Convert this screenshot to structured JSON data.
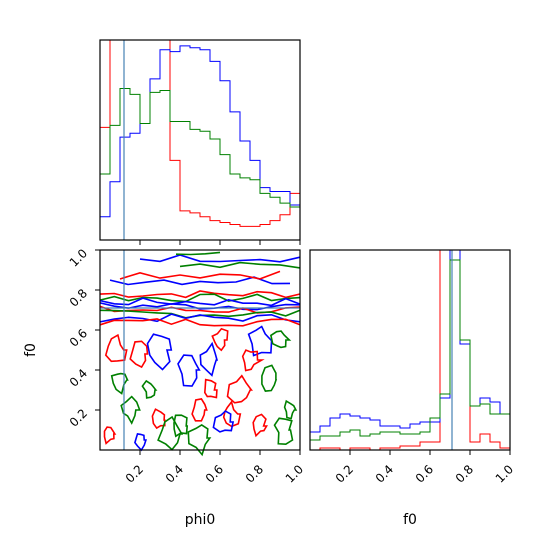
{
  "chart_data": [
    {
      "panel": "phi0-histogram",
      "type": "histogram",
      "xlim": [
        0,
        1
      ],
      "truth": 0.12,
      "bin_edges": [
        0,
        0.05,
        0.1,
        0.15,
        0.2,
        0.25,
        0.3,
        0.35,
        0.4,
        0.45,
        0.5,
        0.55,
        0.6,
        0.65,
        0.7,
        0.75,
        0.8,
        0.85,
        0.9,
        0.95,
        1.0
      ],
      "series": [
        {
          "color": "#ff0000",
          "values": [
            0.58,
            1.55,
            1.55,
            1.55,
            1.55,
            1.55,
            1.55,
            0.41,
            0.15,
            0.14,
            0.12,
            0.1,
            0.09,
            0.08,
            0.07,
            0.07,
            0.08,
            0.1,
            0.13,
            0.24
          ]
        },
        {
          "color": "#0000ff",
          "values": [
            0.12,
            0.3,
            0.53,
            0.55,
            0.6,
            0.83,
            0.98,
            0.97,
            1.0,
            0.99,
            0.98,
            0.92,
            0.82,
            0.66,
            0.51,
            0.41,
            0.27,
            0.25,
            0.25,
            0.18
          ]
        },
        {
          "color": "#008000",
          "values": [
            0.34,
            0.59,
            0.78,
            0.75,
            0.6,
            0.76,
            0.77,
            0.61,
            0.61,
            0.57,
            0.56,
            0.52,
            0.44,
            0.34,
            0.32,
            0.31,
            0.24,
            0.22,
            0.19,
            0.17
          ]
        }
      ]
    },
    {
      "panel": "phi0-f0-contours",
      "type": "contour",
      "xlabel": "phi0",
      "ylabel": "f0",
      "xlim": [
        0,
        1
      ],
      "ylim": [
        0,
        1
      ],
      "xticks": [
        "0.2",
        "0.4",
        "0.6",
        "0.8",
        "1.0"
      ],
      "yticks": [
        "0.2",
        "0.4",
        "0.6",
        "0.8",
        "1.0"
      ],
      "truth": {
        "phi0": 0.12,
        "f0": 0.71
      },
      "series": [
        {
          "color": "#ff0000"
        },
        {
          "color": "#0000ff"
        },
        {
          "color": "#008000"
        }
      ]
    },
    {
      "panel": "f0-histogram",
      "type": "histogram",
      "xlabel": "f0",
      "xlim": [
        0,
        1
      ],
      "xticks": [
        "0.2",
        "0.4",
        "0.6",
        "0.8",
        "1.0"
      ],
      "truth": 0.71,
      "bin_edges": [
        0,
        0.05,
        0.1,
        0.15,
        0.2,
        0.25,
        0.3,
        0.35,
        0.4,
        0.45,
        0.5,
        0.55,
        0.6,
        0.65,
        0.7,
        0.75,
        0.8,
        0.85,
        0.9,
        0.95,
        1.0
      ],
      "series": [
        {
          "color": "#ff0000",
          "values": [
            0.0,
            0.01,
            0.01,
            0.0,
            0.01,
            0.01,
            0.0,
            0.01,
            0.01,
            0.02,
            0.02,
            0.04,
            0.04,
            1.0,
            1.0,
            0.55,
            0.04,
            0.08,
            0.04,
            0.01
          ]
        },
        {
          "color": "#0000ff",
          "values": [
            0.09,
            0.12,
            0.16,
            0.18,
            0.17,
            0.16,
            0.15,
            0.12,
            0.12,
            0.11,
            0.13,
            0.14,
            0.14,
            0.26,
            1.0,
            0.53,
            0.22,
            0.26,
            0.24,
            0.18
          ]
        },
        {
          "color": "#008000",
          "values": [
            0.05,
            0.07,
            0.07,
            0.09,
            0.1,
            0.07,
            0.08,
            0.09,
            0.09,
            0.08,
            0.08,
            0.09,
            0.16,
            0.28,
            0.95,
            0.55,
            0.22,
            0.23,
            0.18,
            0.18
          ]
        }
      ]
    }
  ]
}
